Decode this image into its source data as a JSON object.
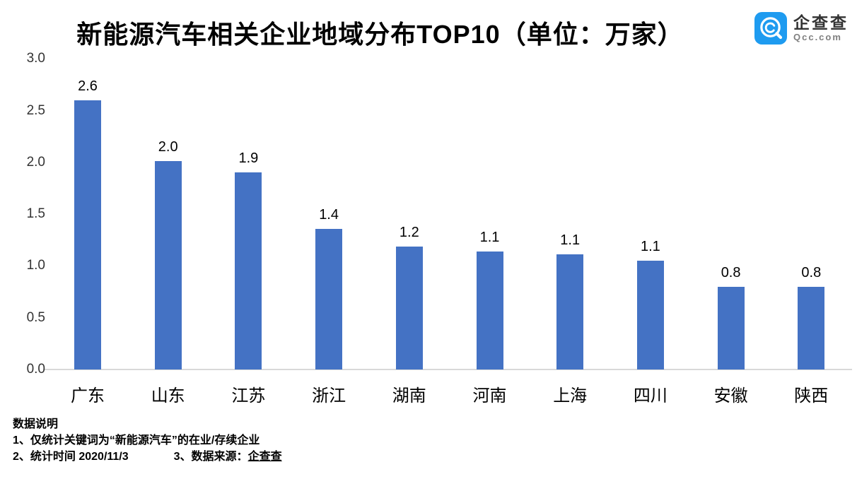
{
  "header": {
    "title": "新能源汽车相关企业地域分布TOP10（单位：万家）",
    "logo": {
      "name": "企查查",
      "domain": "Qcc.com",
      "brand_color": "#1e9bf0"
    }
  },
  "chart_data": {
    "type": "bar",
    "title": "新能源汽车相关企业地域分布TOP10（单位：万家）",
    "unit": "万家",
    "categories": [
      "广东",
      "山东",
      "江苏",
      "浙江",
      "湖南",
      "河南",
      "上海",
      "四川",
      "安徽",
      "陕西"
    ],
    "values": [
      2.6,
      2.0,
      1.9,
      1.4,
      1.2,
      1.1,
      1.1,
      1.1,
      0.8,
      0.8
    ],
    "value_labels": [
      "2.6",
      "2.0",
      "1.9",
      "1.4",
      "1.2",
      "1.1",
      "1.1",
      "1.1",
      "0.8",
      "0.8"
    ],
    "values_precise": [
      2.6,
      2.01,
      1.9,
      1.36,
      1.19,
      1.14,
      1.11,
      1.05,
      0.8,
      0.8
    ],
    "y_ticks": [
      "3.0",
      "2.5",
      "2.0",
      "1.5",
      "1.0",
      "0.5",
      "0.0"
    ],
    "ylim": [
      0,
      3.0
    ],
    "bar_color": "#4472c4",
    "axis_line_color": "#d9d9d9",
    "grid": false,
    "legend": false,
    "data_labels": true
  },
  "notes": {
    "heading": "数据说明",
    "line1": "1、仅统计关键词为“新能源汽车”的在业/存续企业",
    "line2_left": "2、统计时间  2020/11/3",
    "line2_right_prefix": "3、数据来源：",
    "line2_right_source": "企查查"
  }
}
